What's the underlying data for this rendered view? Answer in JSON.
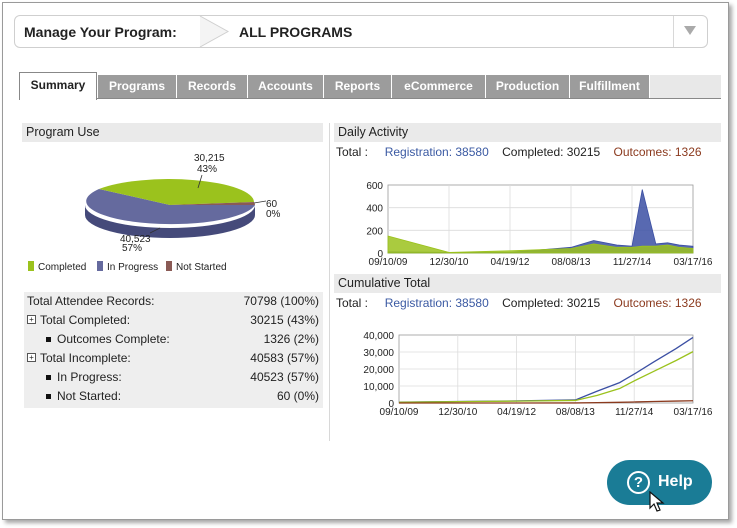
{
  "program_selector": {
    "label": "Manage Your Program:",
    "value": "ALL PROGRAMS"
  },
  "tabs": [
    {
      "label": "Summary",
      "active": true
    },
    {
      "label": "Programs",
      "active": false
    },
    {
      "label": "Records",
      "active": false
    },
    {
      "label": "Accounts",
      "active": false
    },
    {
      "label": "Reports",
      "active": false
    },
    {
      "label": "eCommerce",
      "active": false
    },
    {
      "label": "Production",
      "active": false
    },
    {
      "label": "Fulfillment",
      "active": false
    }
  ],
  "program_use": {
    "title": "Program Use",
    "pie": {
      "completed_value": "30,215",
      "completed_pct": "43%",
      "in_progress_value": "40,523",
      "in_progress_pct": "57%",
      "not_started_value": "60",
      "not_started_pct": "0%"
    },
    "legend": [
      {
        "label": "Completed",
        "color": "#9bc21d"
      },
      {
        "label": "In Progress",
        "color": "#656a9e"
      },
      {
        "label": "Not Started",
        "color": "#8a5a55"
      }
    ]
  },
  "stats": [
    {
      "label": "Total Attendee Records:",
      "value": "70798 (100%)"
    },
    {
      "label": "Total Completed:",
      "value": "30215 (43%)"
    },
    {
      "label": "Outcomes Complete:",
      "value": "1326 (2%)"
    },
    {
      "label": "Total Incomplete:",
      "value": "40583 (57%)"
    },
    {
      "label": "In Progress:",
      "value": "40523 (57%)"
    },
    {
      "label": "Not Started:",
      "value": "60 (0%)"
    }
  ],
  "totals": {
    "label": "Total :",
    "registration": "Registration: 38580",
    "completed": "Completed: 30215",
    "outcomes": "Outcomes: 1326"
  },
  "chart_data": [
    {
      "type": "pie",
      "title": "Program Use",
      "categories": [
        "Completed",
        "In Progress",
        "Not Started"
      ],
      "values": [
        30215,
        40523,
        60
      ],
      "labels": [
        "30,215\n43%",
        "40,523\n57%",
        "60\n0%"
      ]
    },
    {
      "type": "area",
      "title": "Daily Activity",
      "x_tick_labels": [
        "09/10/09",
        "12/30/10",
        "04/19/12",
        "08/08/13",
        "11/27/14",
        "03/17/16"
      ],
      "y_tick_labels": [
        "0",
        "200",
        "400",
        "600"
      ],
      "ylim": [
        0,
        600
      ],
      "grid": true,
      "series": [
        {
          "name": "Registration",
          "color": "#3b4fa3",
          "x": [
            "09/10/09",
            "12/30/10",
            "04/19/12",
            "08/08/13",
            "02/01/14",
            "08/01/14",
            "11/27/14",
            "02/15/15",
            "06/01/15",
            "09/01/15",
            "12/01/15",
            "03/17/16"
          ],
          "values": [
            10,
            5,
            5,
            50,
            110,
            70,
            60,
            560,
            80,
            90,
            70,
            60
          ]
        },
        {
          "name": "Completed",
          "color": "#9bc21d",
          "x": [
            "09/10/09",
            "12/30/10",
            "04/19/12",
            "08/08/13",
            "02/01/14",
            "08/01/14",
            "11/27/14",
            "02/15/15",
            "06/01/15",
            "09/01/15",
            "12/01/15",
            "03/17/16"
          ],
          "values": [
            150,
            5,
            20,
            40,
            80,
            50,
            50,
            60,
            60,
            70,
            50,
            40
          ]
        }
      ]
    },
    {
      "type": "line",
      "title": "Cumulative Total",
      "x_tick_labels": [
        "09/10/09",
        "12/30/10",
        "04/19/12",
        "08/08/13",
        "11/27/14",
        "03/17/16"
      ],
      "y_tick_labels": [
        "0",
        "10,000",
        "20,000",
        "30,000",
        "40,000"
      ],
      "ylim": [
        0,
        40000
      ],
      "grid": true,
      "series": [
        {
          "name": "Registration",
          "color": "#3b4fa3",
          "x": [
            "09/10/09",
            "12/30/10",
            "04/19/12",
            "08/08/13",
            "02/01/14",
            "08/01/14",
            "11/27/14",
            "05/01/15",
            "11/01/15",
            "03/17/16"
          ],
          "values": [
            500,
            900,
            1200,
            1800,
            7000,
            12000,
            17000,
            24000,
            32000,
            38580
          ]
        },
        {
          "name": "Completed",
          "color": "#9bc21d",
          "x": [
            "09/10/09",
            "12/30/10",
            "04/19/12",
            "08/08/13",
            "02/01/14",
            "08/01/14",
            "11/27/14",
            "05/01/15",
            "11/01/15",
            "03/17/16"
          ],
          "values": [
            400,
            800,
            1100,
            1500,
            4500,
            8500,
            13000,
            18500,
            25000,
            30215
          ]
        },
        {
          "name": "Outcomes",
          "color": "#8b3a1e",
          "x": [
            "09/10/09",
            "12/30/10",
            "04/19/12",
            "08/08/13",
            "02/01/14",
            "08/01/14",
            "11/27/14",
            "05/01/15",
            "11/01/15",
            "03/17/16"
          ],
          "values": [
            0,
            0,
            0,
            50,
            200,
            400,
            600,
            900,
            1150,
            1326
          ]
        }
      ]
    }
  ],
  "daily_activity": {
    "title": "Daily Activity"
  },
  "cumulative_total": {
    "title": "Cumulative Total"
  },
  "help_button": {
    "label": "Help",
    "icon": "?"
  },
  "icons": {
    "dropdown": "caret-down-icon",
    "help": "question-circle-icon",
    "cursor": "cursor-icon"
  }
}
